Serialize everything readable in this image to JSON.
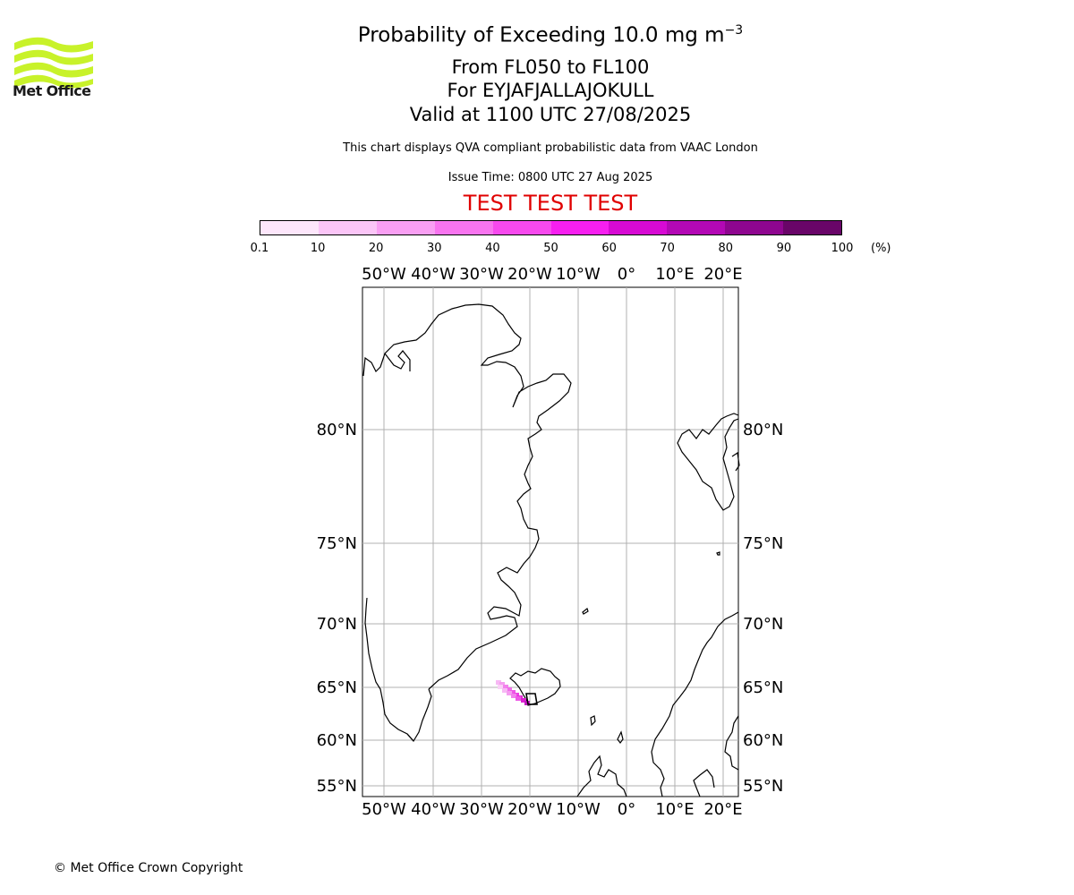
{
  "header": {
    "logo_text": "Met Office",
    "title_prefix": "Probability of Exceeding 10.0 mg m",
    "title_exponent": "−3",
    "level_line": "From FL050 to FL100",
    "volcano_line": "For EYJAFJALLAJOKULL",
    "valid_line": "Valid at 1100 UTC 27/08/2025",
    "source_line": "This chart displays QVA compliant probabilistic data from VAAC London",
    "issue_line": "Issue Time: 0800 UTC 27 Aug 2025",
    "test_banner": "TEST TEST TEST"
  },
  "colorbar": {
    "ticks": [
      "0.1",
      "10",
      "20",
      "30",
      "40",
      "50",
      "60",
      "70",
      "80",
      "90",
      "100"
    ],
    "unit": "(%)",
    "colors": [
      "#fde6fb",
      "#fbc5f7",
      "#f99ff3",
      "#f874ef",
      "#f749ee",
      "#f71ff0",
      "#d70ad4",
      "#b308b5",
      "#8e068f",
      "#690568"
    ]
  },
  "map": {
    "lon_labels": [
      "50°W",
      "40°W",
      "30°W",
      "20°W",
      "10°W",
      "0°",
      "10°E",
      "20°E"
    ],
    "lat_labels": [
      "80°N",
      "75°N",
      "70°N",
      "65°N",
      "60°N",
      "55°N"
    ],
    "highlight_color": "#e000e0"
  },
  "footer": {
    "copyright": "© Met Office Crown Copyright"
  }
}
